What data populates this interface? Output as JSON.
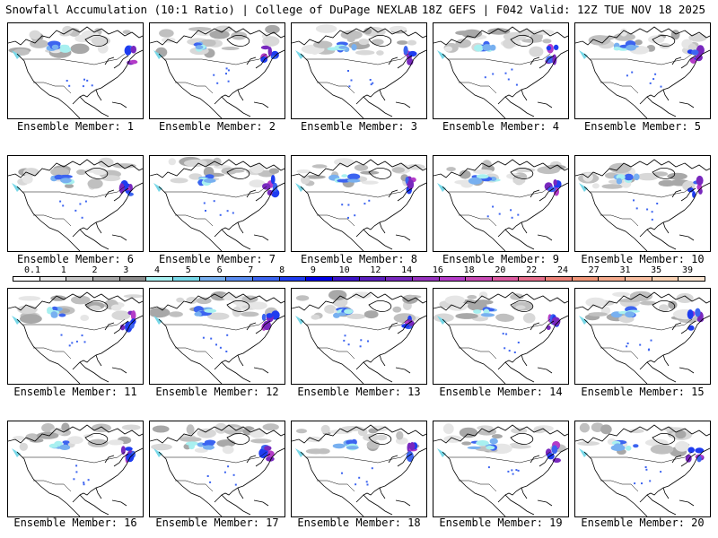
{
  "header": {
    "title": "Snowfall Accumulation (10:1 Ratio) | College of DuPage NEXLAB",
    "run_info": "18Z GEFS | F042 Valid: 12Z TUE NOV 18 2025"
  },
  "legend": {
    "labels": [
      "0.1",
      "1",
      "2",
      "3",
      "4",
      "5",
      "6",
      "7",
      "8",
      "9",
      "10",
      "12",
      "14",
      "16",
      "18",
      "20",
      "22",
      "24",
      "27",
      "31",
      "35",
      "39"
    ],
    "colors": [
      "#ffffff",
      "#e8e8e8",
      "#c8c8c8",
      "#a8a8a8",
      "#8c8c8c",
      "#a8f0f0",
      "#78d8e8",
      "#78b0f0",
      "#5a8cf0",
      "#3c64f0",
      "#1e3cf0",
      "#0000e6",
      "#3c14c8",
      "#5a1ebe",
      "#7828be",
      "#9632be",
      "#b43cc8",
      "#c84ab4",
      "#dc5aa0",
      "#e66e8c",
      "#ec8278",
      "#f09678",
      "#f4aa8c",
      "#f8bea0",
      "#fad2b4",
      "#fce6d2"
    ]
  },
  "members": [
    {
      "label": "Ensemble Member: 1"
    },
    {
      "label": "Ensemble Member: 2"
    },
    {
      "label": "Ensemble Member: 3"
    },
    {
      "label": "Ensemble Member: 4"
    },
    {
      "label": "Ensemble Member: 5"
    },
    {
      "label": "Ensemble Member: 6"
    },
    {
      "label": "Ensemble Member: 7"
    },
    {
      "label": "Ensemble Member: 8"
    },
    {
      "label": "Ensemble Member: 9"
    },
    {
      "label": "Ensemble Member: 10"
    },
    {
      "label": "Ensemble Member: 11"
    },
    {
      "label": "Ensemble Member: 12"
    },
    {
      "label": "Ensemble Member: 13"
    },
    {
      "label": "Ensemble Member: 14"
    },
    {
      "label": "Ensemble Member: 15"
    },
    {
      "label": "Ensemble Member: 16"
    },
    {
      "label": "Ensemble Member: 17"
    },
    {
      "label": "Ensemble Member: 18"
    },
    {
      "label": "Ensemble Member: 19"
    },
    {
      "label": "Ensemble Member: 20"
    }
  ]
}
